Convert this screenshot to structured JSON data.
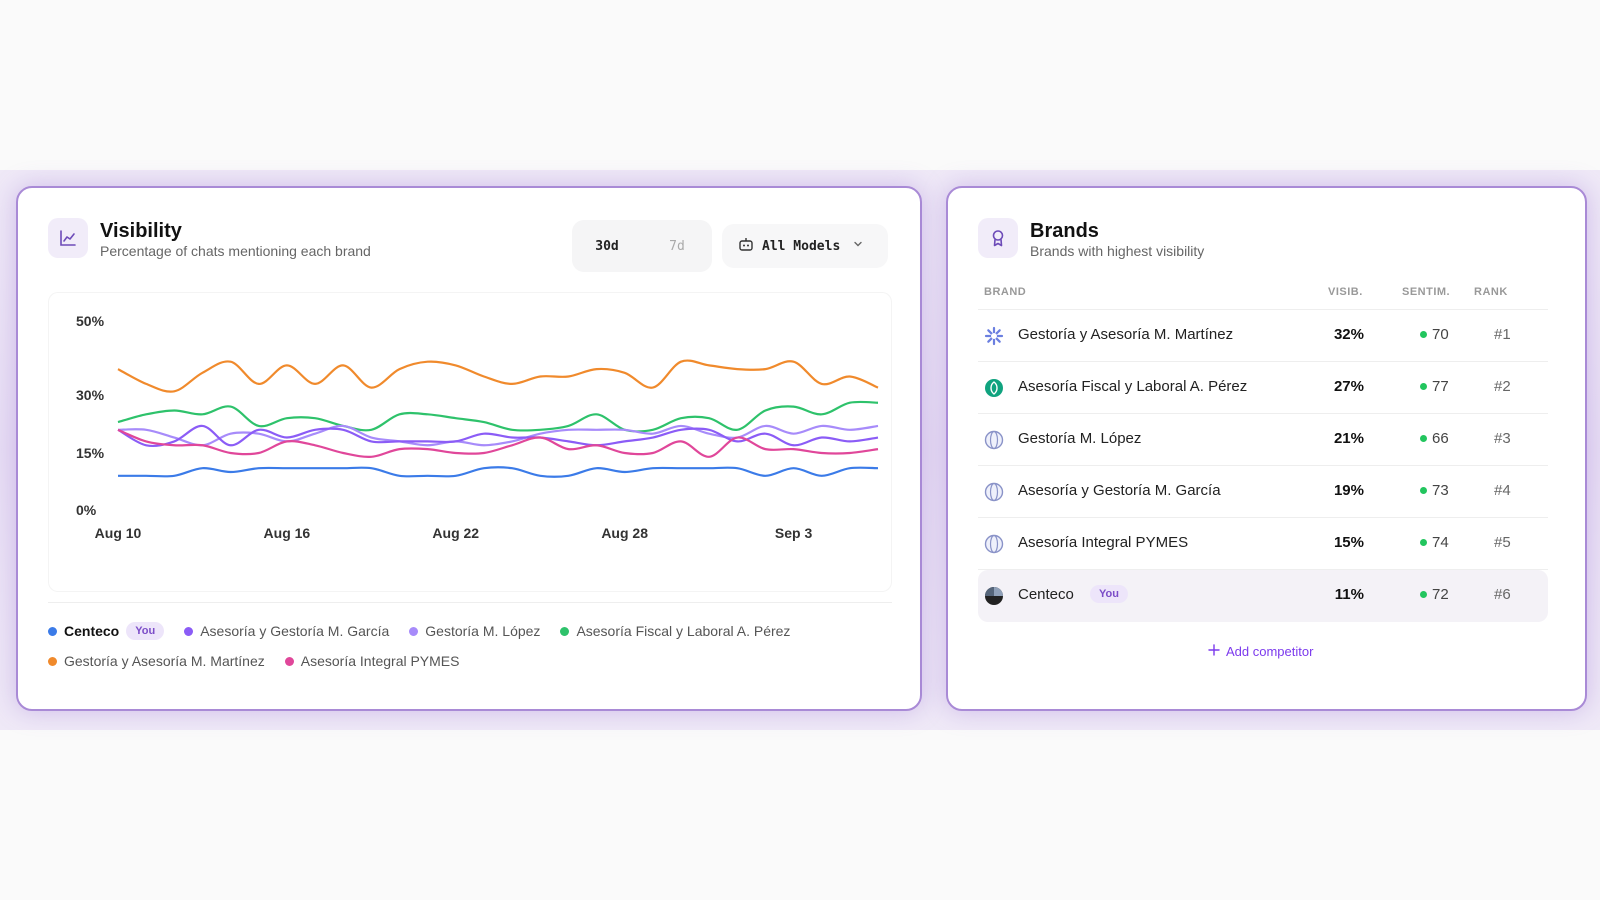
{
  "visibility": {
    "title": "Visibility",
    "subtitle": "Percentage of chats mentioning each brand",
    "range_options": [
      "30d",
      "7d"
    ],
    "active_range": "30d",
    "models_label": "All Models",
    "legend_you_badge": "You"
  },
  "brands": {
    "title": "Brands",
    "subtitle": "Brands with highest visibility",
    "headers": {
      "brand": "BRAND",
      "visib": "VISIB.",
      "sentim": "SENTIM.",
      "rank": "RANK"
    },
    "rows": [
      {
        "name": "Gestoría y Asesoría M. Martínez",
        "visib": "32%",
        "sentim": "70",
        "rank": "#1",
        "icon": "star-burst-icon"
      },
      {
        "name": "Asesoría Fiscal y Laboral A. Pérez",
        "visib": "27%",
        "sentim": "77",
        "rank": "#2",
        "icon": "openai-icon"
      },
      {
        "name": "Gestoría M. López",
        "visib": "21%",
        "sentim": "66",
        "rank": "#3",
        "icon": "globe-icon"
      },
      {
        "name": "Asesoría y Gestoría M. García",
        "visib": "19%",
        "sentim": "73",
        "rank": "#4",
        "icon": "globe-icon"
      },
      {
        "name": "Asesoría Integral PYMES",
        "visib": "15%",
        "sentim": "74",
        "rank": "#5",
        "icon": "globe-icon"
      },
      {
        "name": "Centeco",
        "visib": "11%",
        "sentim": "72",
        "rank": "#6",
        "icon": "pie-logo-icon",
        "you": "You"
      }
    ],
    "add_competitor": "Add competitor"
  },
  "colors": {
    "accent": "#7c3aed",
    "Centeco": "#3b7be8",
    "García": "#8b5cf6",
    "López": "#a78bfa",
    "Pérez": "#2ec26b",
    "Martínez": "#f08a2c",
    "PYMES": "#e0479a"
  },
  "chart_data": {
    "type": "line",
    "x": [
      "Aug 10",
      "Aug 11",
      "Aug 12",
      "Aug 13",
      "Aug 14",
      "Aug 15",
      "Aug 16",
      "Aug 17",
      "Aug 18",
      "Aug 19",
      "Aug 20",
      "Aug 21",
      "Aug 22",
      "Aug 23",
      "Aug 24",
      "Aug 25",
      "Aug 26",
      "Aug 27",
      "Aug 28",
      "Aug 29",
      "Aug 30",
      "Aug 31",
      "Sep 1",
      "Sep 2",
      "Sep 3",
      "Sep 4",
      "Sep 5",
      "Sep 6"
    ],
    "x_ticks": [
      "Aug 10",
      "Aug 16",
      "Aug 22",
      "Aug 28",
      "Sep 3"
    ],
    "y_ticks": [
      "0%",
      "15%",
      "30%",
      "50%"
    ],
    "ylim": [
      0,
      50
    ],
    "grid": false,
    "legend_position": "bottom",
    "series": [
      {
        "name": "Centeco",
        "color": "#3b7be8",
        "values": [
          9,
          9,
          9,
          11,
          10,
          11,
          11,
          11,
          11,
          11,
          9,
          9,
          9,
          11,
          11,
          9,
          9,
          11,
          10,
          11,
          11,
          11,
          11,
          9,
          11,
          9,
          11,
          11
        ]
      },
      {
        "name": "Asesoría y Gestoría M. García",
        "color": "#8b5cf6",
        "values": [
          21,
          17,
          18,
          22,
          17,
          21,
          19,
          21,
          21,
          18,
          18,
          18,
          18,
          20,
          19,
          19,
          18,
          17,
          18,
          19,
          21,
          21,
          18,
          20,
          17,
          19,
          18,
          19
        ]
      },
      {
        "name": "Gestoría M. López",
        "color": "#a78bfa",
        "values": [
          21,
          21,
          19,
          17,
          20,
          20,
          18,
          20,
          22,
          19,
          18,
          17,
          18,
          17,
          18,
          20,
          21,
          21,
          21,
          20,
          22,
          20,
          19,
          22,
          20,
          22,
          21,
          22
        ]
      },
      {
        "name": "Asesoría Fiscal y Laboral A. Pérez",
        "color": "#2ec26b",
        "values": [
          23,
          25,
          26,
          25,
          27,
          22,
          24,
          24,
          22,
          21,
          25,
          25,
          24,
          23,
          21,
          21,
          22,
          25,
          21,
          21,
          24,
          24,
          21,
          26,
          27,
          25,
          28,
          28
        ]
      },
      {
        "name": "Gestoría y Asesoría M. Martínez",
        "color": "#f08a2c",
        "values": [
          37,
          33,
          31,
          36,
          39,
          33,
          38,
          33,
          38,
          32,
          37,
          39,
          38,
          35,
          33,
          35,
          35,
          37,
          36,
          32,
          39,
          38,
          37,
          37,
          39,
          33,
          35,
          32
        ]
      },
      {
        "name": "Asesoría Integral PYMES",
        "color": "#e0479a",
        "values": [
          21,
          18,
          17,
          17,
          15,
          15,
          18,
          17,
          15,
          14,
          16,
          16,
          15,
          15,
          17,
          19,
          16,
          17,
          15,
          15,
          18,
          14,
          19,
          16,
          16,
          15,
          15,
          16
        ]
      }
    ]
  }
}
